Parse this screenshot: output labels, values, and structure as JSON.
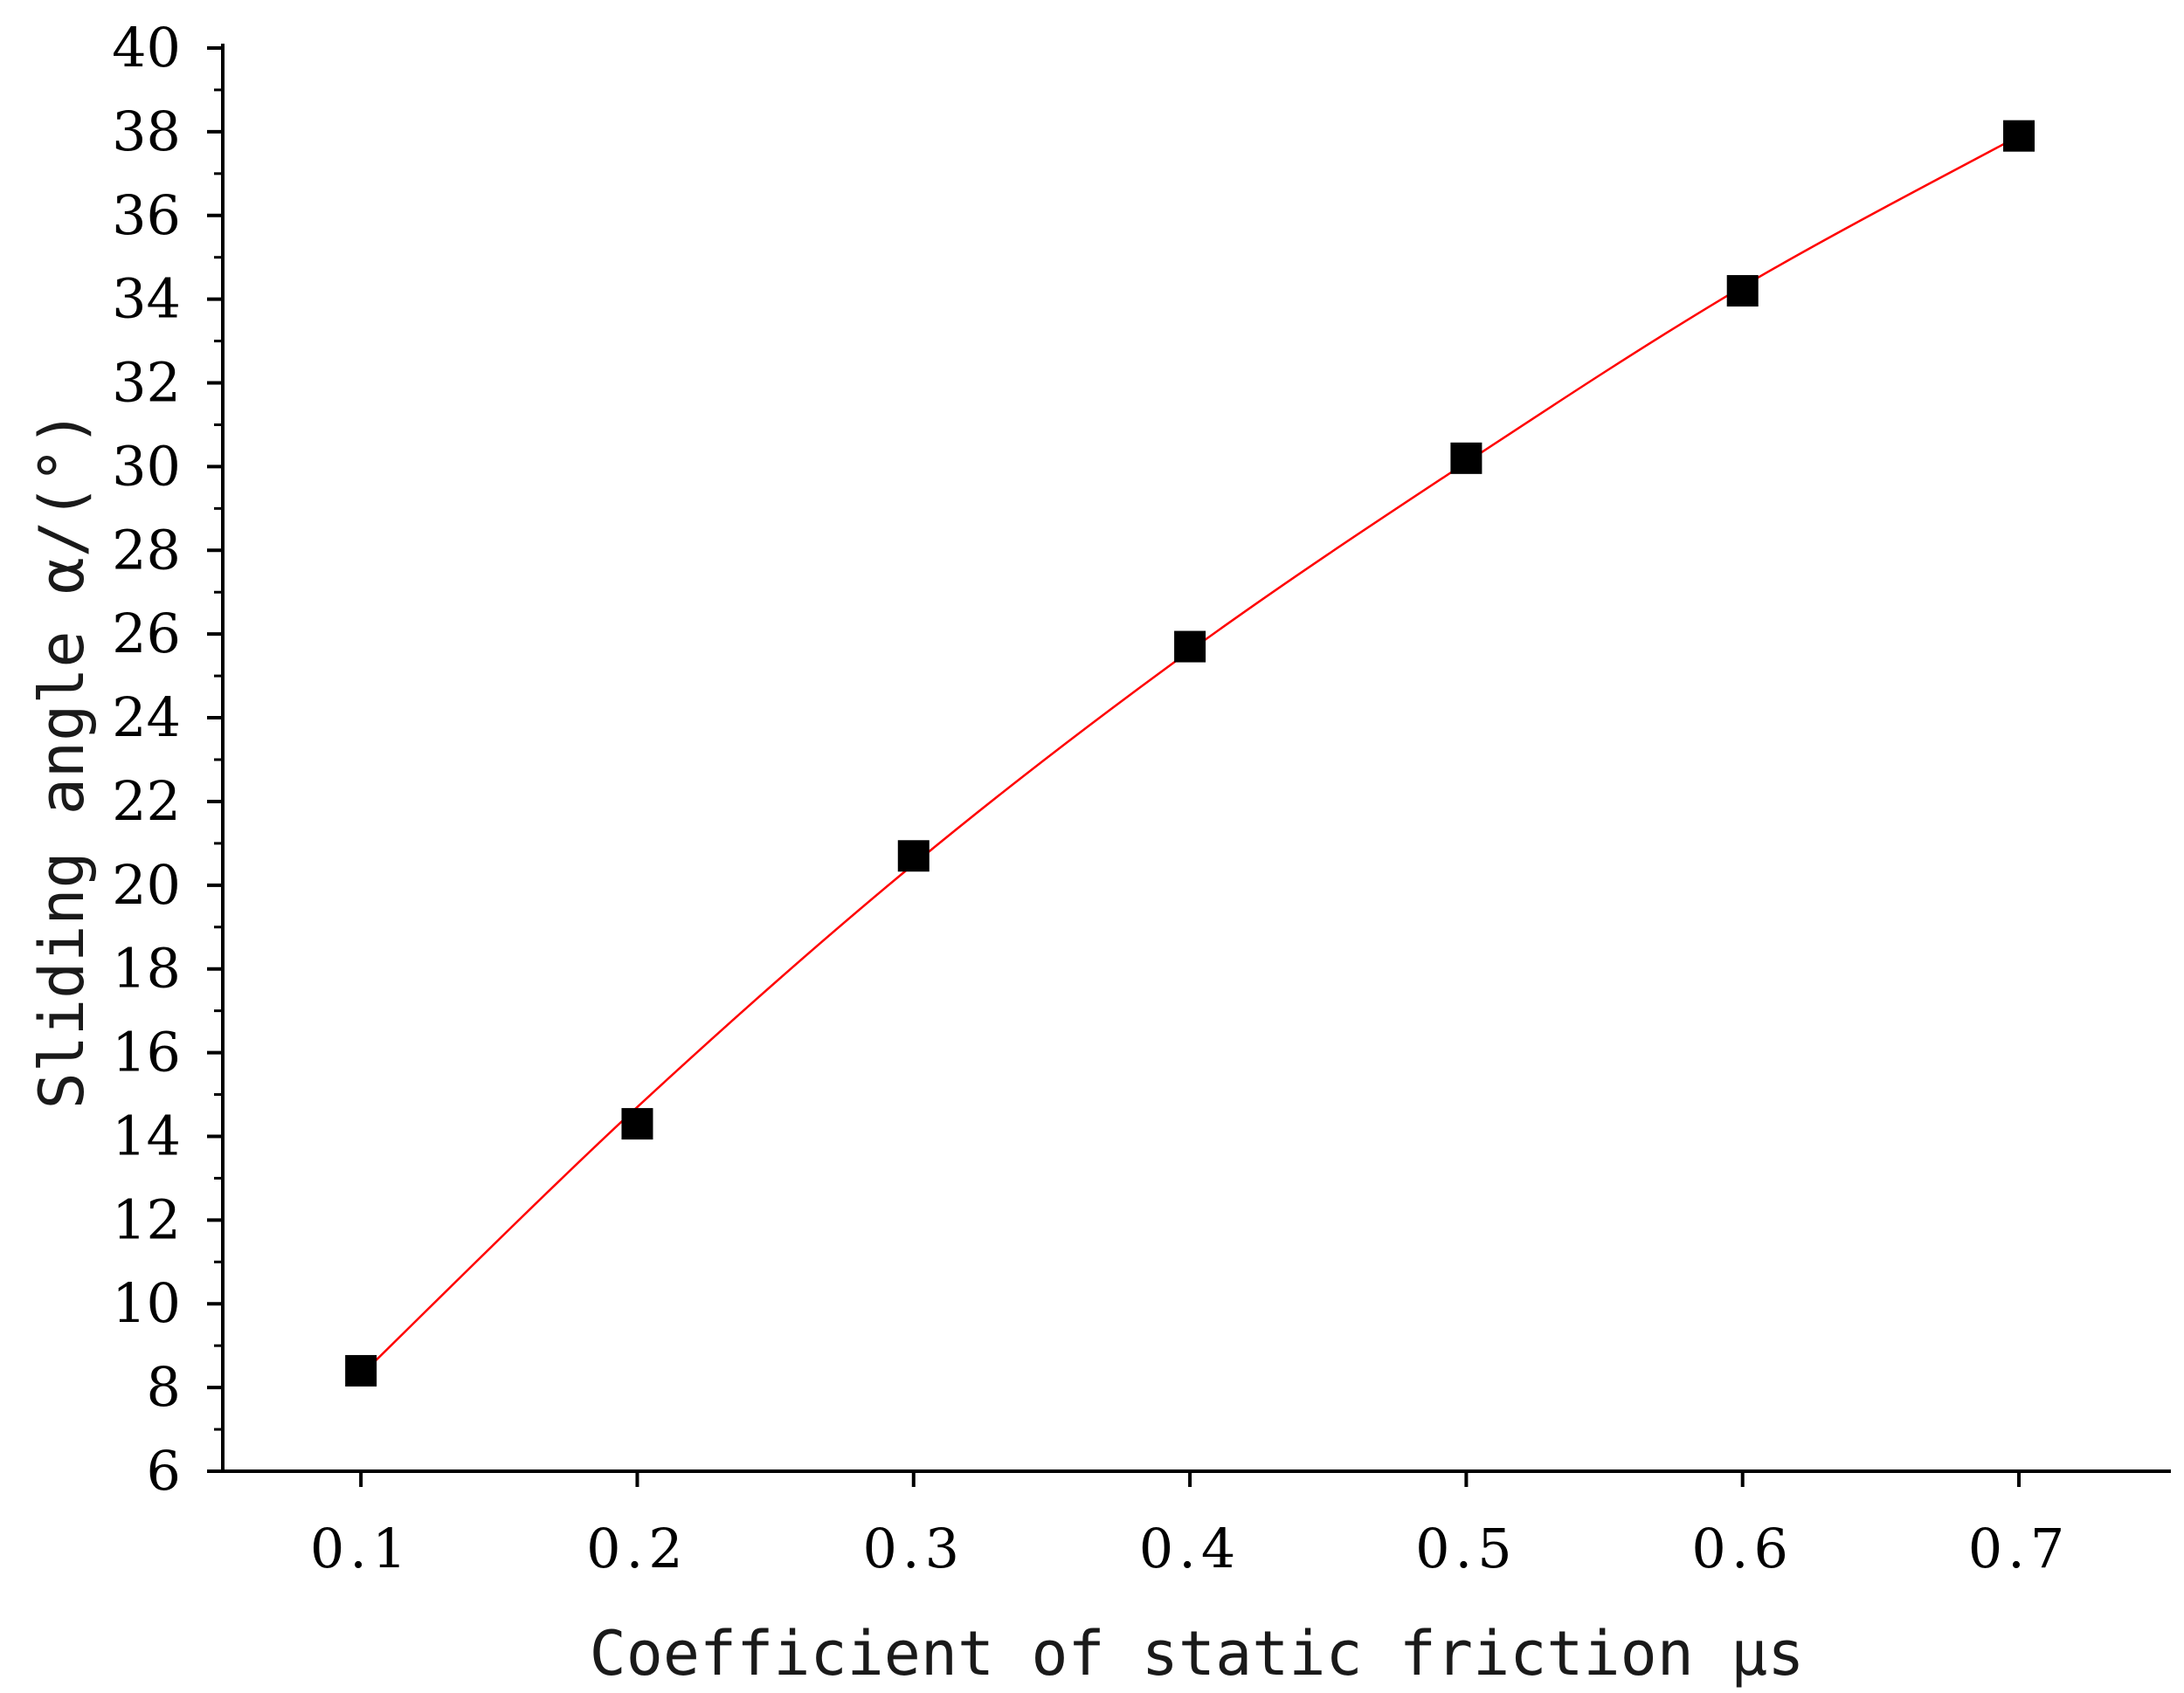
{
  "chart_data": {
    "type": "scatter",
    "title": "",
    "xlabel": "Coefficient of static friction μs",
    "ylabel": "Sliding angle α/(°)",
    "xlim": [
      0.05,
      0.755
    ],
    "ylim": [
      6,
      40
    ],
    "x_ticks": [
      "0.1",
      "0.2",
      "0.3",
      "0.4",
      "0.5",
      "0.6",
      "0.7"
    ],
    "y_ticks": [
      "6",
      "8",
      "10",
      "12",
      "14",
      "16",
      "18",
      "20",
      "22",
      "24",
      "26",
      "28",
      "30",
      "32",
      "34",
      "36",
      "38",
      "40"
    ],
    "grid": false,
    "legend": "none",
    "series": [
      {
        "kind": "markers",
        "marker": "square",
        "color": "#000000",
        "x": [
          0.1,
          0.2,
          0.3,
          0.4,
          0.5,
          0.6,
          0.7
        ],
        "y": [
          8.4,
          14.3,
          20.7,
          25.7,
          30.2,
          34.2,
          37.9
        ]
      },
      {
        "kind": "fit-line",
        "color": "#ff0000",
        "x": [
          0.1,
          0.2,
          0.3,
          0.4,
          0.5,
          0.6,
          0.7
        ],
        "y": [
          8.3,
          14.7,
          20.5,
          25.6,
          30.1,
          34.3,
          37.9
        ]
      }
    ]
  }
}
